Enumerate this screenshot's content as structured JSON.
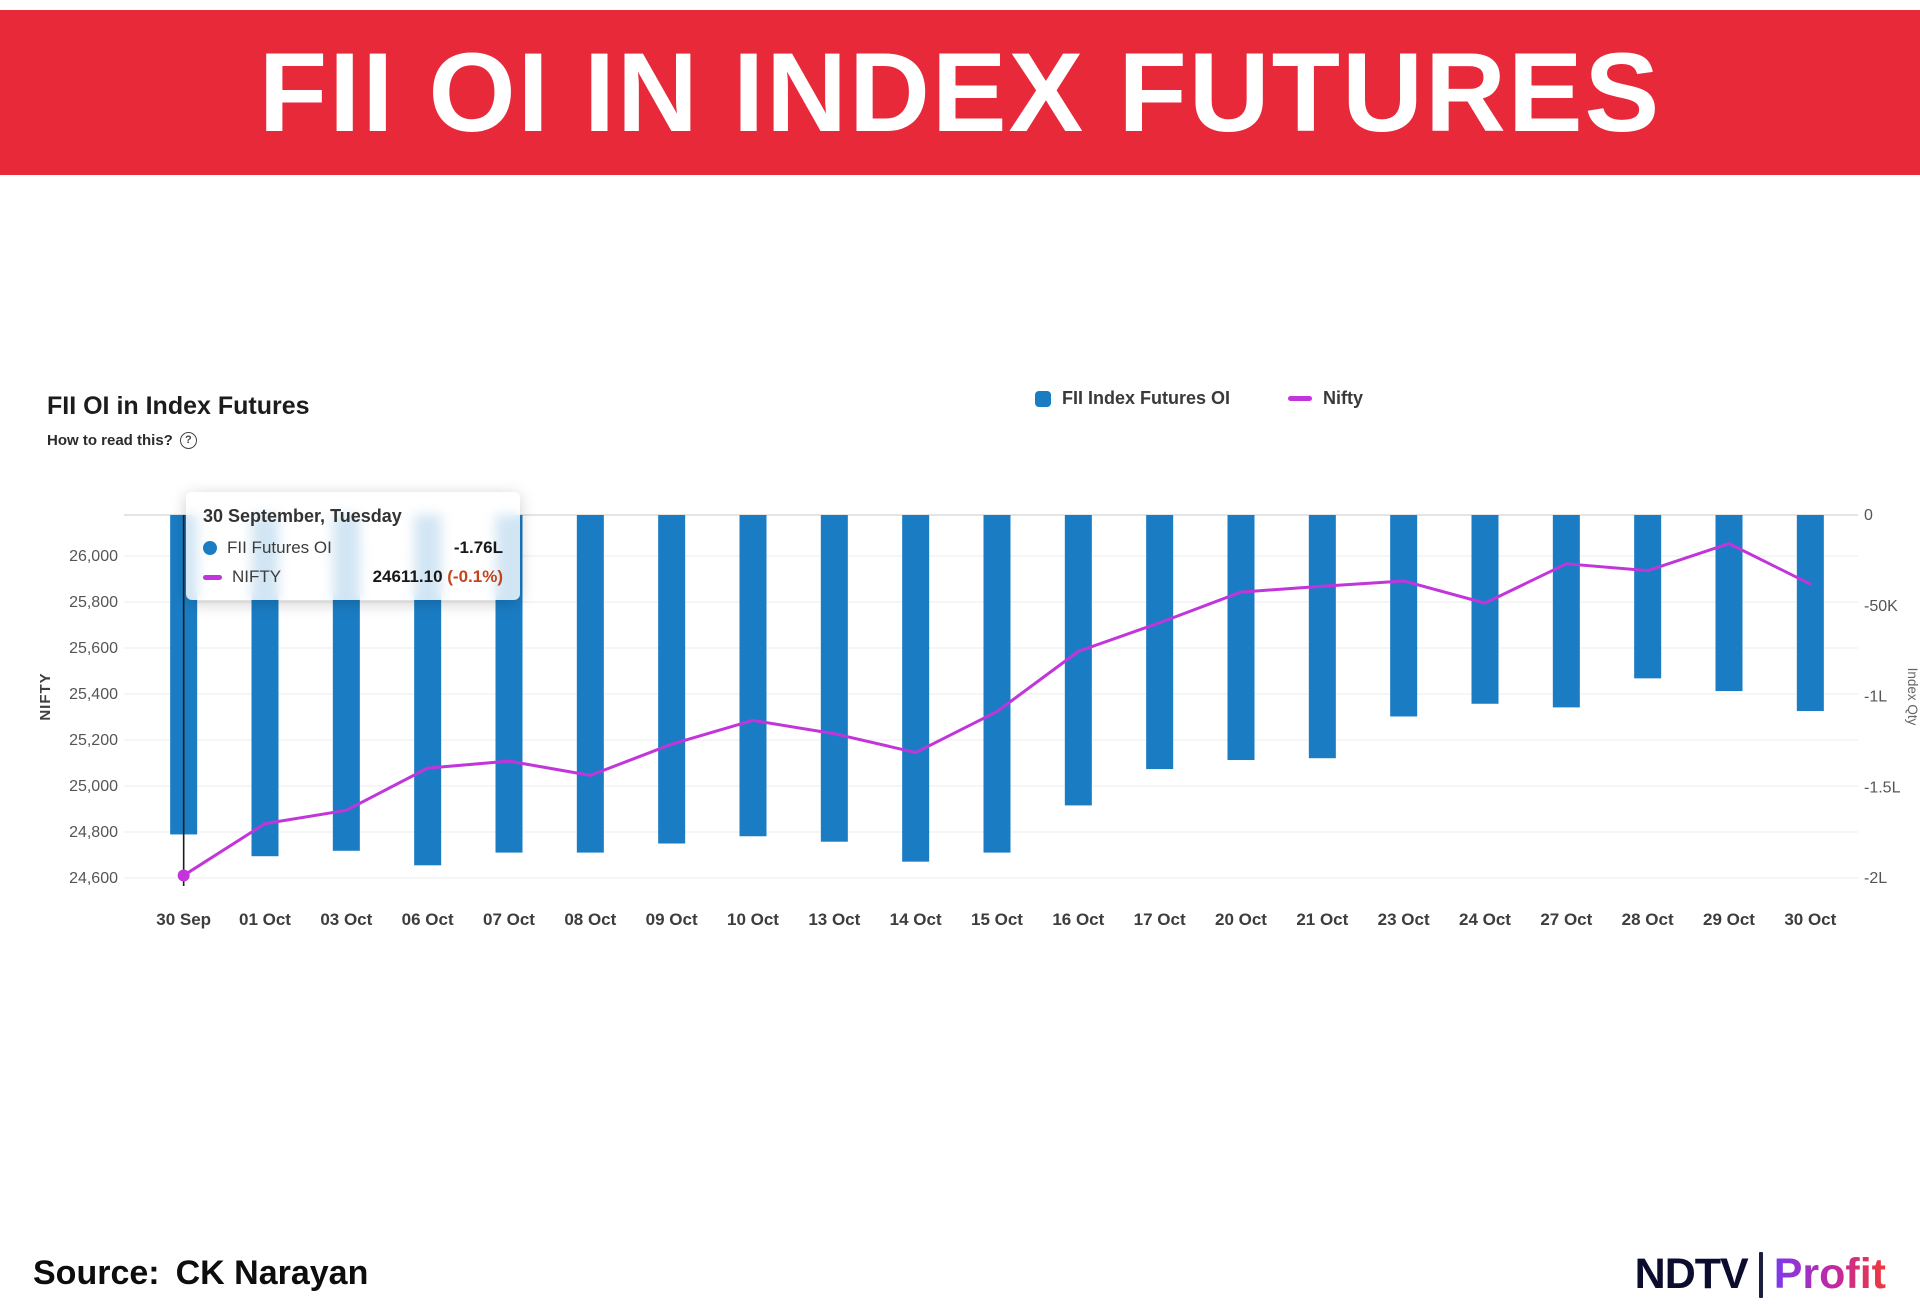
{
  "banner": {
    "title": "FII OI IN INDEX FUTURES",
    "bg_color": "#e8293a"
  },
  "chart": {
    "title": "FII OI in Index Futures",
    "help_text": "How to read this?",
    "help_icon": "?",
    "legend": [
      {
        "label": "FII Index Futures OI"
      },
      {
        "label": "Nifty"
      }
    ]
  },
  "chart_data": {
    "type": "bar",
    "title": "FII OI in Index Futures",
    "categories": [
      "30 Sep",
      "01 Oct",
      "03 Oct",
      "06 Oct",
      "07 Oct",
      "08 Oct",
      "09 Oct",
      "10 Oct",
      "13 Oct",
      "14 Oct",
      "15 Oct",
      "16 Oct",
      "17 Oct",
      "20 Oct",
      "21 Oct",
      "23 Oct",
      "24 Oct",
      "27 Oct",
      "28 Oct",
      "29 Oct",
      "30 Oct"
    ],
    "series": [
      {
        "name": "FII Index Futures OI",
        "type": "bar",
        "axis": "right",
        "unit": "lakh contracts",
        "color": "#1a7dc4",
        "values": [
          -1.76,
          -1.88,
          -1.85,
          -1.93,
          -1.86,
          -1.86,
          -1.81,
          -1.77,
          -1.8,
          -1.91,
          -1.86,
          -1.6,
          -1.4,
          -1.35,
          -1.34,
          -1.11,
          -1.04,
          -1.06,
          -0.9,
          -0.97,
          -1.08
        ]
      },
      {
        "name": "Nifty",
        "type": "line",
        "axis": "left",
        "color": "#c135da",
        "values": [
          24611.1,
          24836.3,
          24894.25,
          25077.65,
          25108.3,
          25046.15,
          25181.8,
          25285.35,
          25227.35,
          25145.5,
          25323.55,
          25585.3,
          25709.85,
          25843.15,
          25868.6,
          25891.4,
          25795.15,
          25966.05,
          25936.2,
          26053.9,
          25877.85
        ]
      }
    ],
    "left_axis": {
      "title": "NIFTY",
      "min": 24600,
      "ticks": [
        26000,
        25800,
        25600,
        25400,
        25200,
        25000,
        24800,
        24600
      ],
      "tick_labels": [
        "26,000",
        "25,800",
        "25,600",
        "25,400",
        "25,200",
        "25,000",
        "24,800",
        "24,600"
      ]
    },
    "right_axis": {
      "title": "Index Qty",
      "ticks": [
        {
          "label": "0",
          "value": 0
        },
        {
          "label": "-50K",
          "value": -0.5
        },
        {
          "label": "-1L",
          "value": -1
        },
        {
          "label": "-1.5L",
          "value": -1.5
        },
        {
          "label": "-2L",
          "value": -2
        }
      ]
    },
    "highlight": {
      "index": 0
    },
    "grid": true,
    "legend_position": "top"
  },
  "tooltip": {
    "date": "30 September, Tuesday",
    "rows": [
      {
        "label": "FII Futures OI",
        "value": "-1.76L"
      },
      {
        "label": "NIFTY",
        "value": "24611.10",
        "change": "(-0.1%)"
      }
    ]
  },
  "footer": {
    "source_label": "Source:",
    "source_value": "CK Narayan",
    "logo_ndtv": "NDTV",
    "logo_profit": "Profit"
  }
}
